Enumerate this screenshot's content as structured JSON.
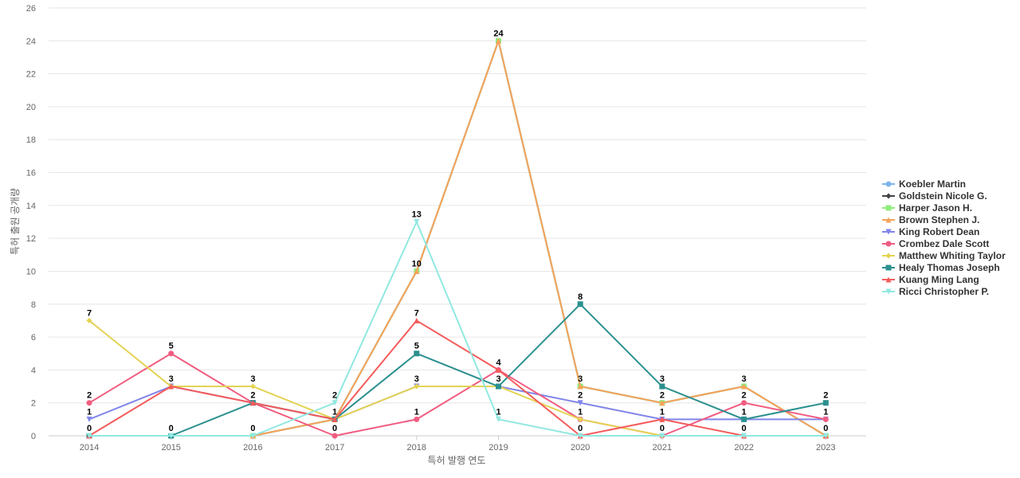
{
  "chart_data": {
    "type": "line",
    "title": "",
    "xlabel": "특허 발행 연도",
    "ylabel": "특허 출원 공개량",
    "categories": [
      "2014",
      "2015",
      "2016",
      "2017",
      "2018",
      "2019",
      "2020",
      "2021",
      "2022",
      "2023"
    ],
    "ylim": [
      0,
      26
    ],
    "yticks": [
      0,
      2,
      4,
      6,
      8,
      10,
      12,
      14,
      16,
      18,
      20,
      22,
      24,
      26
    ],
    "grid": true,
    "legend_position": "right",
    "series": [
      {
        "name": "Koebler Martin",
        "color": "#7cb5ec",
        "marker": "circle",
        "values": [
          0,
          0,
          0,
          1,
          10,
          24,
          3,
          2,
          3,
          0
        ]
      },
      {
        "name": "Goldstein Nicole G.",
        "color": "#434348",
        "marker": "diamond",
        "values": [
          0,
          0,
          0,
          1,
          10,
          24,
          3,
          2,
          3,
          0
        ]
      },
      {
        "name": "Harper Jason H.",
        "color": "#90ed7d",
        "marker": "square",
        "values": [
          0,
          0,
          0,
          1,
          10,
          24,
          3,
          2,
          3,
          0
        ]
      },
      {
        "name": "Brown Stephen J.",
        "color": "#f7a35c",
        "marker": "triangle",
        "values": [
          0,
          0,
          0,
          1,
          10,
          24,
          3,
          2,
          3,
          0
        ]
      },
      {
        "name": "King Robert Dean",
        "color": "#8085e9",
        "marker": "triangle-down",
        "values": [
          1,
          3,
          2,
          1,
          3,
          3,
          2,
          1,
          1,
          1
        ]
      },
      {
        "name": "Crombez Dale Scott",
        "color": "#f15c80",
        "marker": "circle",
        "values": [
          2,
          5,
          2,
          0,
          1,
          4,
          1,
          0,
          2,
          1
        ]
      },
      {
        "name": "Matthew Whiting Taylor",
        "color": "#e4d354",
        "marker": "diamond",
        "values": [
          7,
          3,
          3,
          1,
          3,
          3,
          1,
          0,
          0,
          0
        ]
      },
      {
        "name": "Healy Thomas Joseph",
        "color": "#2b908f",
        "marker": "square",
        "values": [
          0,
          0,
          2,
          1,
          5,
          3,
          8,
          3,
          1,
          2
        ]
      },
      {
        "name": "Kuang Ming Lang",
        "color": "#f45b5b",
        "marker": "triangle",
        "values": [
          0,
          3,
          2,
          1,
          7,
          4,
          0,
          1,
          0,
          0
        ]
      },
      {
        "name": "Ricci Christopher P.",
        "color": "#91e8e1",
        "marker": "triangle-down",
        "values": [
          0,
          0,
          0,
          2,
          13,
          1,
          0,
          0,
          0,
          0
        ]
      }
    ],
    "data_labels": [
      {
        "x": "2014",
        "y": 7,
        "text": "7"
      },
      {
        "x": "2014",
        "y": 2,
        "text": "2"
      },
      {
        "x": "2014",
        "y": 1,
        "text": "1"
      },
      {
        "x": "2014",
        "y": 0,
        "text": "0"
      },
      {
        "x": "2015",
        "y": 5,
        "text": "5"
      },
      {
        "x": "2015",
        "y": 3,
        "text": "3"
      },
      {
        "x": "2015",
        "y": 0,
        "text": "0"
      },
      {
        "x": "2016",
        "y": 3,
        "text": "3"
      },
      {
        "x": "2016",
        "y": 2,
        "text": "2"
      },
      {
        "x": "2016",
        "y": 0,
        "text": "0"
      },
      {
        "x": "2017",
        "y": 2,
        "text": "2"
      },
      {
        "x": "2017",
        "y": 1,
        "text": "1"
      },
      {
        "x": "2017",
        "y": 0,
        "text": "0"
      },
      {
        "x": "2018",
        "y": 13,
        "text": "13"
      },
      {
        "x": "2018",
        "y": 10,
        "text": "10"
      },
      {
        "x": "2018",
        "y": 7,
        "text": "7"
      },
      {
        "x": "2018",
        "y": 5,
        "text": "5"
      },
      {
        "x": "2018",
        "y": 3,
        "text": "3"
      },
      {
        "x": "2018",
        "y": 1,
        "text": "1"
      },
      {
        "x": "2019",
        "y": 24,
        "text": "24"
      },
      {
        "x": "2019",
        "y": 4,
        "text": "4"
      },
      {
        "x": "2019",
        "y": 3,
        "text": "3"
      },
      {
        "x": "2019",
        "y": 1,
        "text": "1"
      },
      {
        "x": "2020",
        "y": 8,
        "text": "8"
      },
      {
        "x": "2020",
        "y": 3,
        "text": "3"
      },
      {
        "x": "2020",
        "y": 2,
        "text": "2"
      },
      {
        "x": "2020",
        "y": 1,
        "text": "1"
      },
      {
        "x": "2020",
        "y": 0,
        "text": "0"
      },
      {
        "x": "2021",
        "y": 3,
        "text": "3"
      },
      {
        "x": "2021",
        "y": 2,
        "text": "2"
      },
      {
        "x": "2021",
        "y": 1,
        "text": "1"
      },
      {
        "x": "2021",
        "y": 0,
        "text": "0"
      },
      {
        "x": "2022",
        "y": 3,
        "text": "3"
      },
      {
        "x": "2022",
        "y": 2,
        "text": "2"
      },
      {
        "x": "2022",
        "y": 1,
        "text": "1"
      },
      {
        "x": "2022",
        "y": 0,
        "text": "0"
      },
      {
        "x": "2023",
        "y": 2,
        "text": "2"
      },
      {
        "x": "2023",
        "y": 1,
        "text": "1"
      },
      {
        "x": "2023",
        "y": 0,
        "text": "0"
      }
    ]
  }
}
